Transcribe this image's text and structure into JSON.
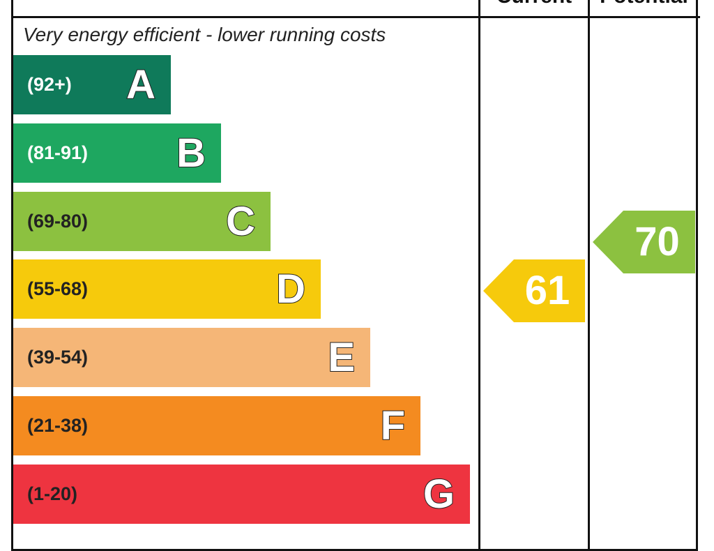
{
  "chart_data": {
    "type": "bar",
    "headers": {
      "current": "Current",
      "potential": "Potential"
    },
    "top_note": "Very energy efficient - lower running costs",
    "bands": [
      {
        "letter": "A",
        "range": "(92+)",
        "color": "#0f7a5a",
        "range_color": "#ffffff"
      },
      {
        "letter": "B",
        "range": "(81-91)",
        "color": "#1ea760",
        "range_color": "#ffffff"
      },
      {
        "letter": "C",
        "range": "(69-80)",
        "color": "#8cc140",
        "range_color": "#222222"
      },
      {
        "letter": "D",
        "range": "(55-68)",
        "color": "#f6ca0c",
        "range_color": "#222222"
      },
      {
        "letter": "E",
        "range": "(39-54)",
        "color": "#f5b677",
        "range_color": "#222222"
      },
      {
        "letter": "F",
        "range": "(21-38)",
        "color": "#f48b20",
        "range_color": "#222222"
      },
      {
        "letter": "G",
        "range": "(1-20)",
        "color": "#ee3440",
        "range_color": "#222222"
      }
    ],
    "current": {
      "value": 61,
      "label": "61",
      "band": "D",
      "color": "#f6ca0c"
    },
    "potential": {
      "value": 70,
      "label": "70",
      "band": "C",
      "color": "#8cc140"
    }
  }
}
